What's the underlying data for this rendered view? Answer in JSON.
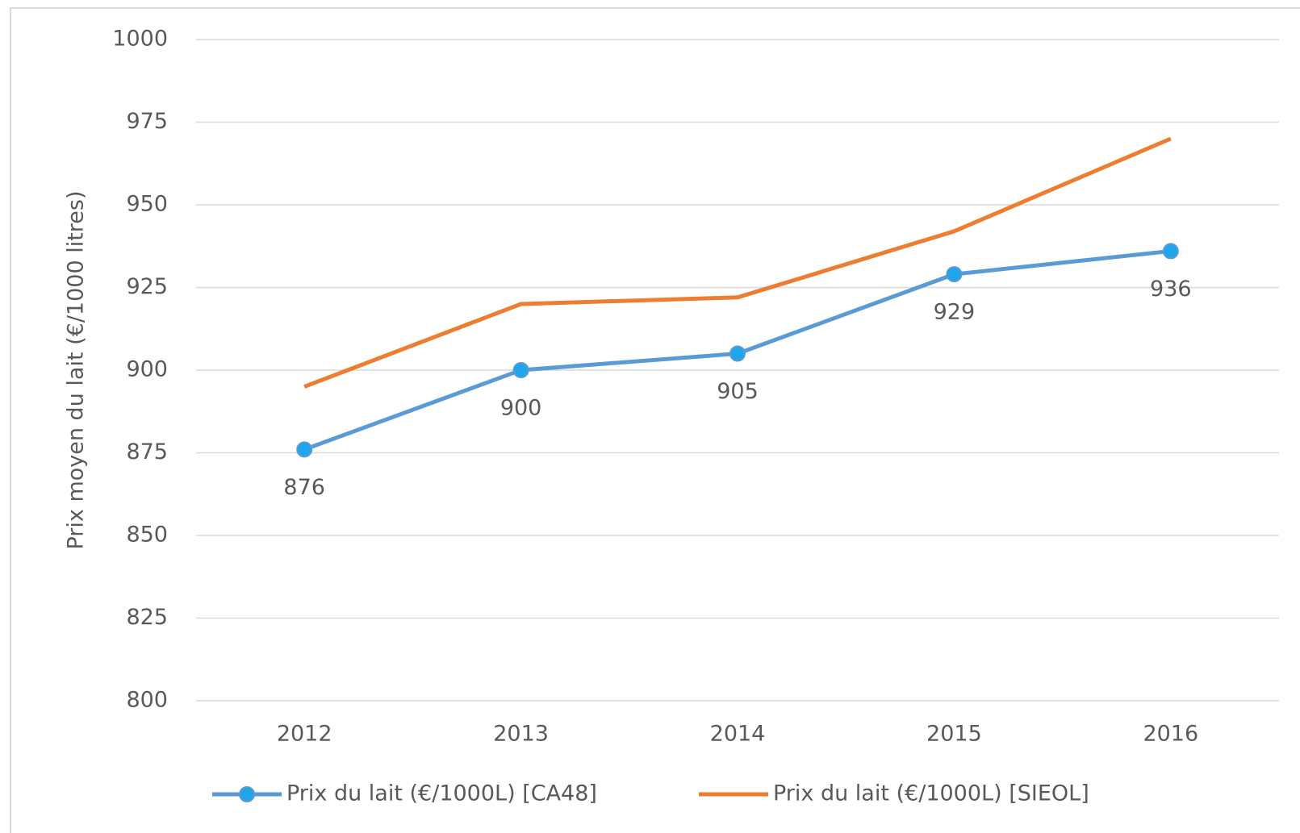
{
  "chart_data": {
    "type": "line",
    "y_label": "Prix moyen du lait (€/1000 litres)",
    "categories": [
      "2012",
      "2013",
      "2014",
      "2015",
      "2016"
    ],
    "series": [
      {
        "name": "Prix du lait (€/1000L) [CA48]",
        "color": "#5b9bd5",
        "marker_color": "#1ea5ea",
        "markers": true,
        "data_labels": true,
        "values": [
          876,
          900,
          905,
          929,
          936
        ]
      },
      {
        "name": "Prix du lait (€/1000L) [SIEOL]",
        "color": "#ed7d31",
        "markers": false,
        "data_labels": false,
        "values": [
          895,
          920,
          922,
          942,
          970
        ]
      }
    ],
    "ylim": [
      800,
      1000
    ],
    "yticks": [
      800,
      825,
      850,
      875,
      900,
      925,
      950,
      975,
      1000
    ],
    "grid": true,
    "legend": "bottom"
  }
}
